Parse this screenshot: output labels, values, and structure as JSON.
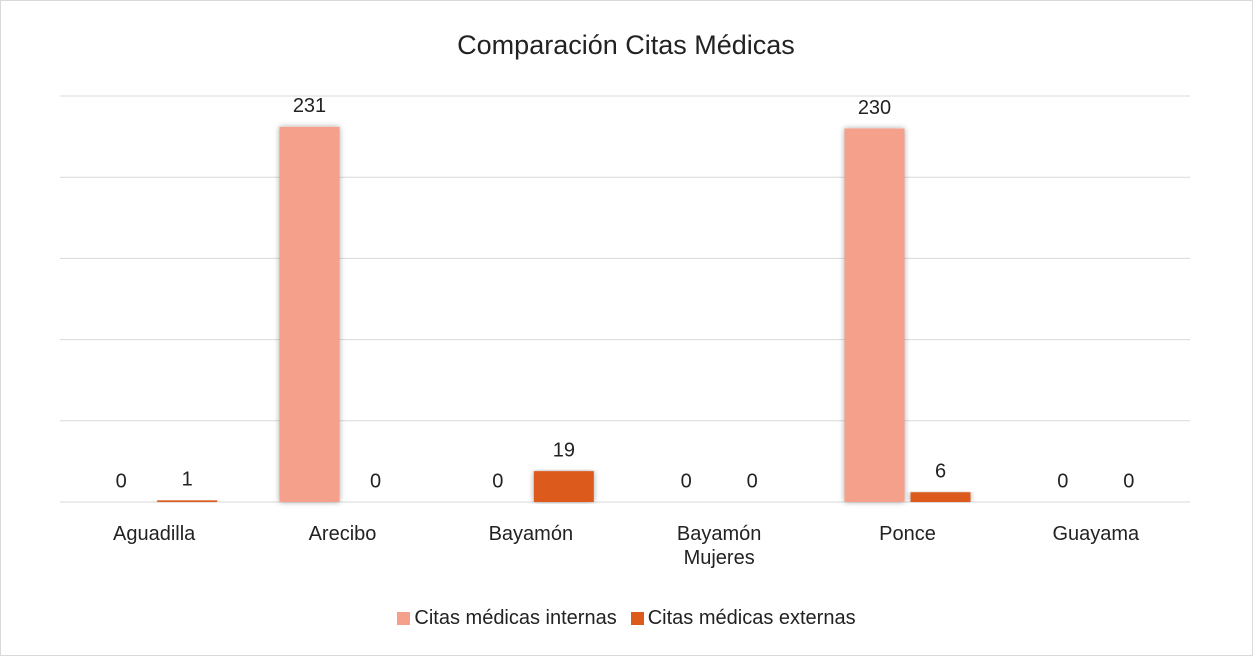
{
  "chart_data": {
    "type": "bar",
    "title": "Comparación Citas Médicas",
    "categories": [
      "Aguadilla",
      "Arecibo",
      "Bayamón",
      "Bayamón Mujeres",
      "Ponce",
      "Guayama"
    ],
    "series": [
      {
        "name": "Citas médicas internas",
        "color": "#f4a08a",
        "values": [
          0,
          231,
          0,
          0,
          230,
          0
        ]
      },
      {
        "name": "Citas médicas externas",
        "color": "#dc5a1c",
        "values": [
          1,
          0,
          19,
          0,
          6,
          0
        ]
      }
    ],
    "ylim": [
      0,
      250
    ],
    "yticks": [
      0,
      50,
      100,
      150,
      200,
      250
    ],
    "grid": true,
    "legend": "bottom"
  }
}
